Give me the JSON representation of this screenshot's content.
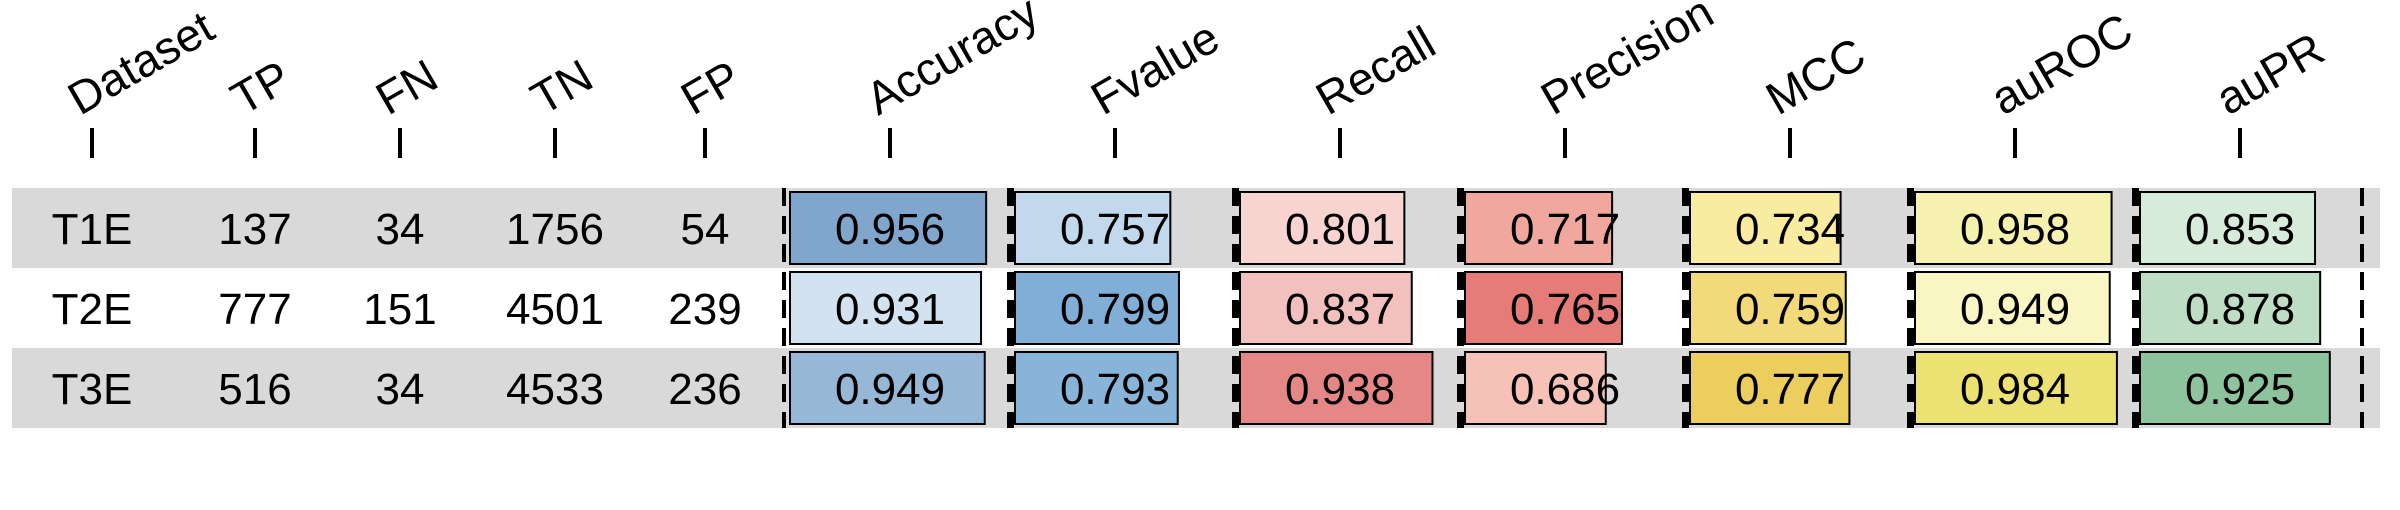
{
  "chart_data": {
    "type": "table",
    "columns": [
      "Dataset",
      "TP",
      "FN",
      "TN",
      "FP",
      "Accuracy",
      "Fvalue",
      "Recall",
      "Precision",
      "MCC",
      "auROC",
      "auPR"
    ],
    "rows": [
      {
        "dataset": "T1E",
        "TP": "137",
        "FN": "34",
        "TN": "1756",
        "FP": "54",
        "Accuracy": "0.956",
        "Fvalue": "0.757",
        "Recall": "0.801",
        "Precision": "0.717",
        "MCC": "0.734",
        "auROC": "0.958",
        "auPR": "0.853"
      },
      {
        "dataset": "T2E",
        "TP": "777",
        "FN": "151",
        "TN": "4501",
        "FP": "239",
        "Accuracy": "0.931",
        "Fvalue": "0.799",
        "Recall": "0.837",
        "Precision": "0.765",
        "MCC": "0.759",
        "auROC": "0.949",
        "auPR": "0.878"
      },
      {
        "dataset": "T3E",
        "TP": "516",
        "FN": "34",
        "TN": "4533",
        "FP": "236",
        "Accuracy": "0.949",
        "Fvalue": "0.793",
        "Recall": "0.938",
        "Precision": "0.686",
        "MCC": "0.777",
        "auROC": "0.984",
        "auPR": "0.925"
      }
    ],
    "metric_colors": {
      "Accuracy": [
        "#f7fbff",
        "#08519c"
      ],
      "Fvalue": [
        "#deebf7",
        "#2171b5"
      ],
      "Recall": [
        "#fff5f0",
        "#cb181d"
      ],
      "Precision": [
        "#fee0d2",
        "#cb181d"
      ],
      "MCC": [
        "#fff7bc",
        "#d9a400"
      ],
      "auROC": [
        "#ffffe5",
        "#d9c400"
      ],
      "auPR": [
        "#f7fcf5",
        "#238b45"
      ]
    },
    "row_shading": [
      "#d9d9d9",
      "#ffffff",
      "#d9d9d9"
    ],
    "bar_scale": [
      0,
      1
    ]
  }
}
